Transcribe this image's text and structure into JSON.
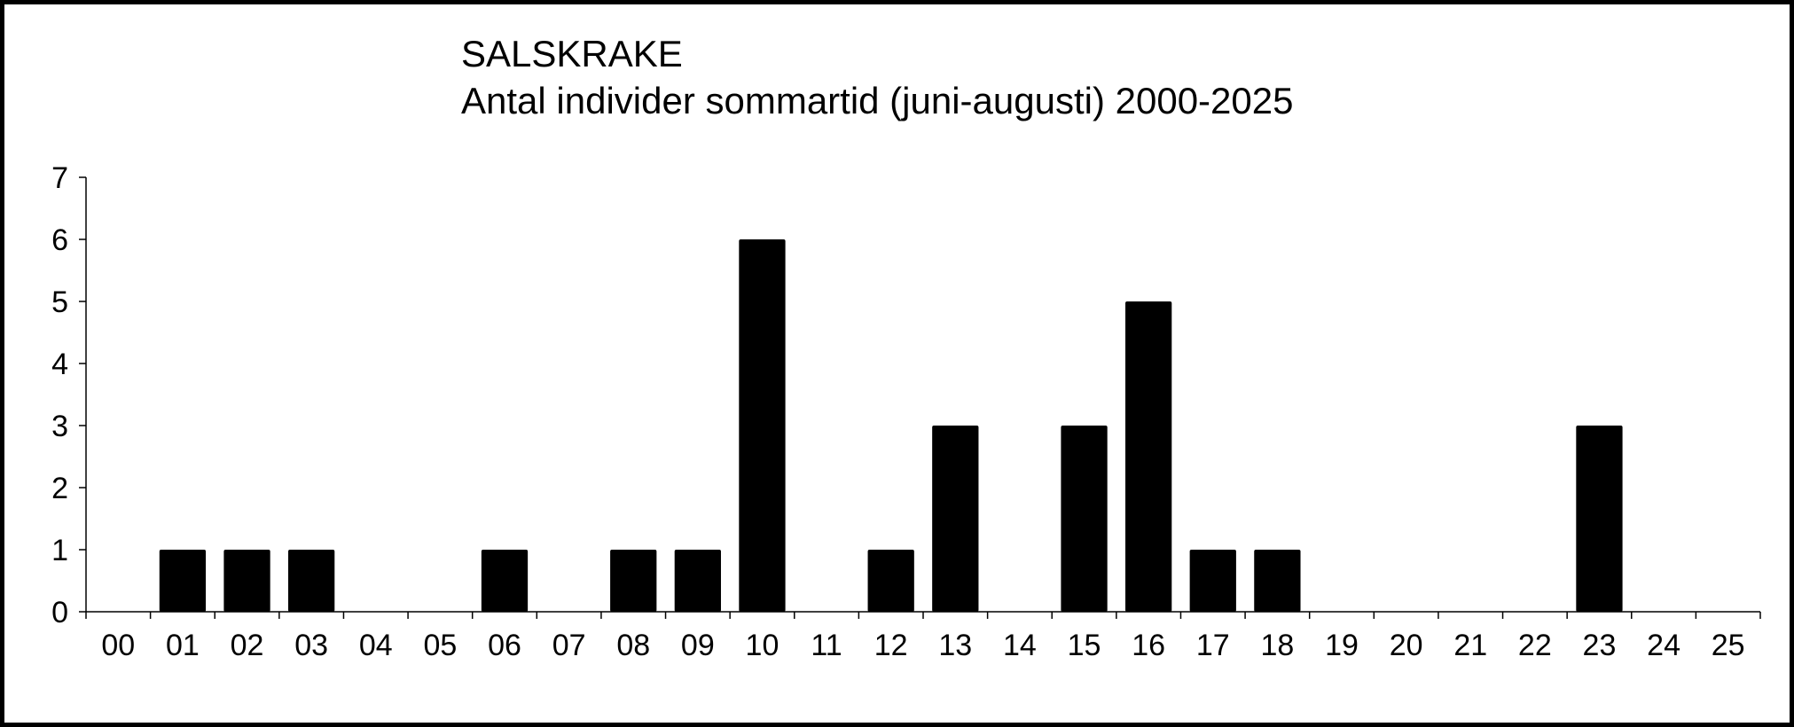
{
  "chart_data": {
    "type": "bar",
    "title": "SALSKRAKE",
    "subtitle": "Antal individer sommartid (juni-augusti) 2000-2025",
    "xlabel": "",
    "ylabel": "",
    "categories": [
      "00",
      "01",
      "02",
      "03",
      "04",
      "05",
      "06",
      "07",
      "08",
      "09",
      "10",
      "11",
      "12",
      "13",
      "14",
      "15",
      "16",
      "17",
      "18",
      "19",
      "20",
      "21",
      "22",
      "23",
      "24",
      "25"
    ],
    "values": [
      0,
      1,
      1,
      1,
      0,
      0,
      1,
      0,
      1,
      1,
      6,
      0,
      1,
      3,
      0,
      3,
      5,
      1,
      1,
      0,
      0,
      0,
      0,
      3,
      0,
      0
    ],
    "ylim": [
      0,
      7
    ],
    "yticks": [
      0,
      1,
      2,
      3,
      4,
      5,
      6,
      7
    ],
    "grid": false,
    "bar_color": "#000000"
  }
}
